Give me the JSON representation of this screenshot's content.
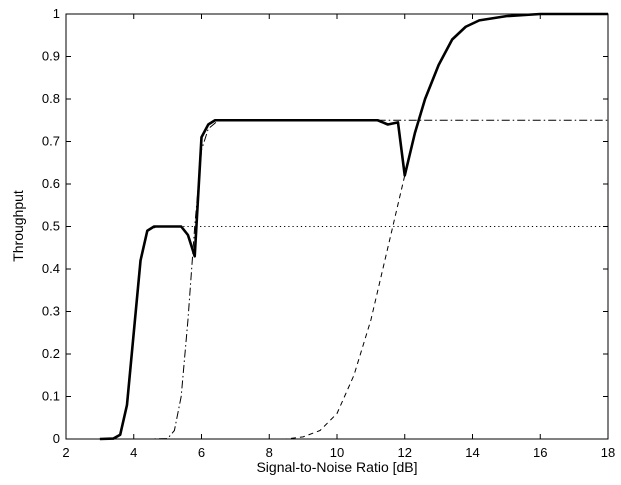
{
  "chart_data": {
    "type": "line",
    "title": "",
    "xlabel": "Signal-to-Noise Ratio [dB]",
    "ylabel": "Throughput",
    "xlim": [
      2,
      18
    ],
    "ylim": [
      0,
      1
    ],
    "xticks": [
      2,
      4,
      6,
      8,
      10,
      12,
      14,
      16,
      18
    ],
    "yticks": [
      0,
      0.1,
      0.2,
      0.3,
      0.4,
      0.5,
      0.6,
      0.7,
      0.8,
      0.9,
      1
    ],
    "grid": false,
    "legend": "none",
    "series": [
      {
        "style": "dotted",
        "points": [
          [
            2,
            0
          ],
          [
            3,
            0
          ],
          [
            3.4,
            0.001
          ],
          [
            3.6,
            0.01
          ],
          [
            3.8,
            0.08
          ],
          [
            4.0,
            0.25
          ],
          [
            4.2,
            0.42
          ],
          [
            4.4,
            0.49
          ],
          [
            4.7,
            0.5
          ],
          [
            5.5,
            0.5
          ],
          [
            18,
            0.5
          ]
        ]
      },
      {
        "style": "dash-dot",
        "points": [
          [
            2,
            0
          ],
          [
            4.5,
            0
          ],
          [
            5.0,
            0.001
          ],
          [
            5.2,
            0.02
          ],
          [
            5.4,
            0.1
          ],
          [
            5.6,
            0.28
          ],
          [
            5.8,
            0.5
          ],
          [
            6.0,
            0.68
          ],
          [
            6.2,
            0.73
          ],
          [
            6.5,
            0.75
          ],
          [
            18,
            0.75
          ]
        ]
      },
      {
        "style": "dashed",
        "points": [
          [
            2,
            0
          ],
          [
            8.5,
            0
          ],
          [
            9,
            0.005
          ],
          [
            9.5,
            0.02
          ],
          [
            10,
            0.06
          ],
          [
            10.5,
            0.15
          ],
          [
            11,
            0.28
          ],
          [
            11.5,
            0.45
          ],
          [
            12,
            0.62
          ],
          [
            12.3,
            0.72
          ],
          [
            12.6,
            0.8
          ],
          [
            13,
            0.88
          ],
          [
            13.4,
            0.94
          ],
          [
            13.8,
            0.97
          ],
          [
            14.2,
            0.985
          ],
          [
            15,
            0.995
          ],
          [
            16,
            1.0
          ],
          [
            18,
            1.0
          ]
        ]
      },
      {
        "style": "solid-bold",
        "points": [
          [
            3,
            0
          ],
          [
            3.4,
            0.001
          ],
          [
            3.6,
            0.01
          ],
          [
            3.8,
            0.08
          ],
          [
            4.0,
            0.25
          ],
          [
            4.2,
            0.42
          ],
          [
            4.4,
            0.49
          ],
          [
            4.6,
            0.5
          ],
          [
            5.4,
            0.5
          ],
          [
            5.6,
            0.48
          ],
          [
            5.8,
            0.43
          ],
          [
            6.0,
            0.71
          ],
          [
            6.2,
            0.74
          ],
          [
            6.4,
            0.75
          ],
          [
            11.2,
            0.75
          ],
          [
            11.5,
            0.74
          ],
          [
            11.8,
            0.745
          ],
          [
            12.0,
            0.62
          ],
          [
            12.3,
            0.72
          ],
          [
            12.6,
            0.8
          ],
          [
            13,
            0.88
          ],
          [
            13.4,
            0.94
          ],
          [
            13.8,
            0.97
          ],
          [
            14.2,
            0.985
          ],
          [
            15,
            0.995
          ],
          [
            16,
            1.0
          ],
          [
            18,
            1.0
          ]
        ]
      }
    ]
  },
  "colors": {
    "line": "#000000",
    "frame": "#000000",
    "background": "#ffffff"
  }
}
